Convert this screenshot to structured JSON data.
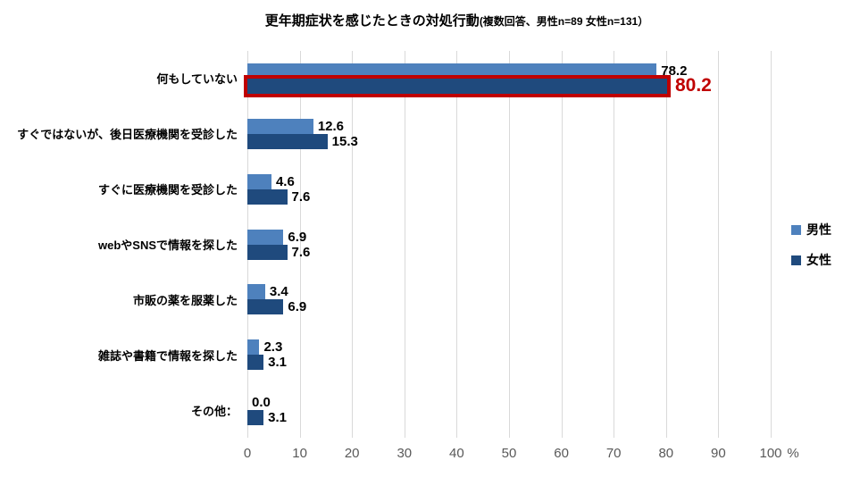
{
  "chart_data": {
    "type": "bar",
    "orientation": "horizontal",
    "title": "更年期症状を感じたときの対処行動",
    "subtitle": "(複数回答、男性n=89 女性n=131）",
    "categories": [
      "何もしていない",
      "すぐではないが、後日医療機関を受診した",
      "すぐに医療機関を受診した",
      "webやSNSで情報を探した",
      "市販の薬を服薬した",
      "雑誌や書籍で情報を探した",
      "その他："
    ],
    "series": [
      {
        "name": "男性",
        "color": "#4E81BD",
        "values": [
          78.2,
          12.6,
          4.6,
          6.9,
          3.4,
          2.3,
          0.0
        ]
      },
      {
        "name": "女性",
        "color": "#1F4A7D",
        "values": [
          80.2,
          15.3,
          7.6,
          7.6,
          6.9,
          3.1,
          3.1
        ]
      }
    ],
    "xlim": [
      0,
      100
    ],
    "x_ticks": [
      0,
      10,
      20,
      30,
      40,
      50,
      60,
      70,
      80,
      90,
      100
    ],
    "x_unit": "%",
    "grid": "vertical",
    "gridline_color": "#D9D9D9",
    "tick_color": "#595959",
    "legend_position": "right",
    "highlight": {
      "category": 0,
      "series": 1,
      "color": "#C00000"
    }
  }
}
